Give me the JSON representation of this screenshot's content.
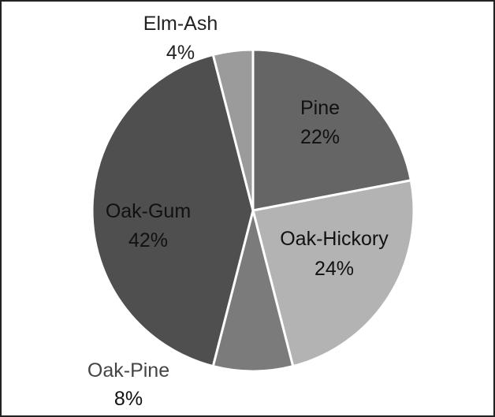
{
  "chart_data": {
    "type": "pie",
    "title": "",
    "start_angle_deg": 0,
    "direction": "clockwise",
    "slices": [
      {
        "name": "Pine",
        "value": 22,
        "label": "22%",
        "color": "#656565",
        "text_color": "#111111"
      },
      {
        "name": "Oak-Hickory",
        "value": 24,
        "label": "24%",
        "color": "#b3b3b3",
        "text_color": "#111111"
      },
      {
        "name": "Oak-Pine",
        "value": 8,
        "label": "8%",
        "color": "#7b7b7b",
        "text_color": "#444444",
        "label_color_value": "#111111"
      },
      {
        "name": "Oak-Gum",
        "value": 42,
        "label": "42%",
        "color": "#4f4f4f",
        "text_color": "#111111"
      },
      {
        "name": "Elm-Ash",
        "value": 4,
        "label": "4%",
        "color": "#9b9b9b",
        "text_color": "#222222"
      }
    ],
    "slice_border_color": "#ffffff",
    "legend": "none"
  }
}
